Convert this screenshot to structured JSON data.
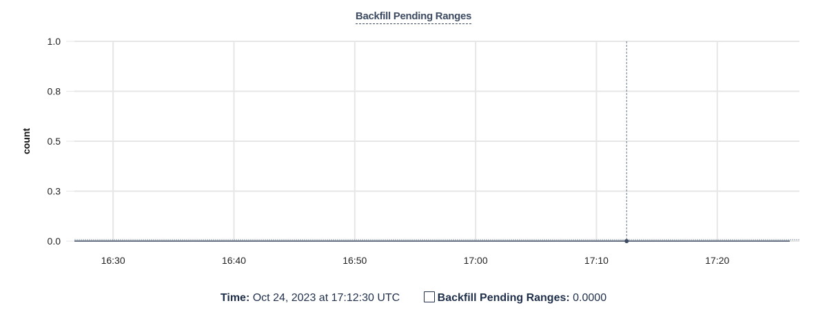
{
  "chart_data": {
    "type": "line",
    "title": "Backfill Pending Ranges",
    "xlabel": "",
    "ylabel": "count",
    "xlim": [
      "16:26:48",
      "17:26:48"
    ],
    "ylim": [
      0,
      1
    ],
    "y_ticks": [
      {
        "value": 0,
        "label": "0.0"
      },
      {
        "value": 0.25,
        "label": "0.3"
      },
      {
        "value": 0.5,
        "label": "0.5"
      },
      {
        "value": 0.75,
        "label": "0.8"
      },
      {
        "value": 1,
        "label": "1.0"
      }
    ],
    "x_ticks": [
      "16:30",
      "16:40",
      "16:50",
      "17:00",
      "17:10",
      "17:20"
    ],
    "grid": true,
    "series": [
      {
        "name": "Backfill Pending Ranges",
        "color": "#3d4b63",
        "x": [
          "16:26:48",
          "17:26:00"
        ],
        "y": [
          0,
          0
        ]
      }
    ],
    "hover": {
      "time": "17:12:30",
      "value": 0
    }
  },
  "legend": {
    "time_label": "Time:",
    "time_value": "Oct 24, 2023 at 17:12:30 UTC",
    "series_label": "Backfill Pending Ranges:",
    "series_value": "0.0000"
  }
}
